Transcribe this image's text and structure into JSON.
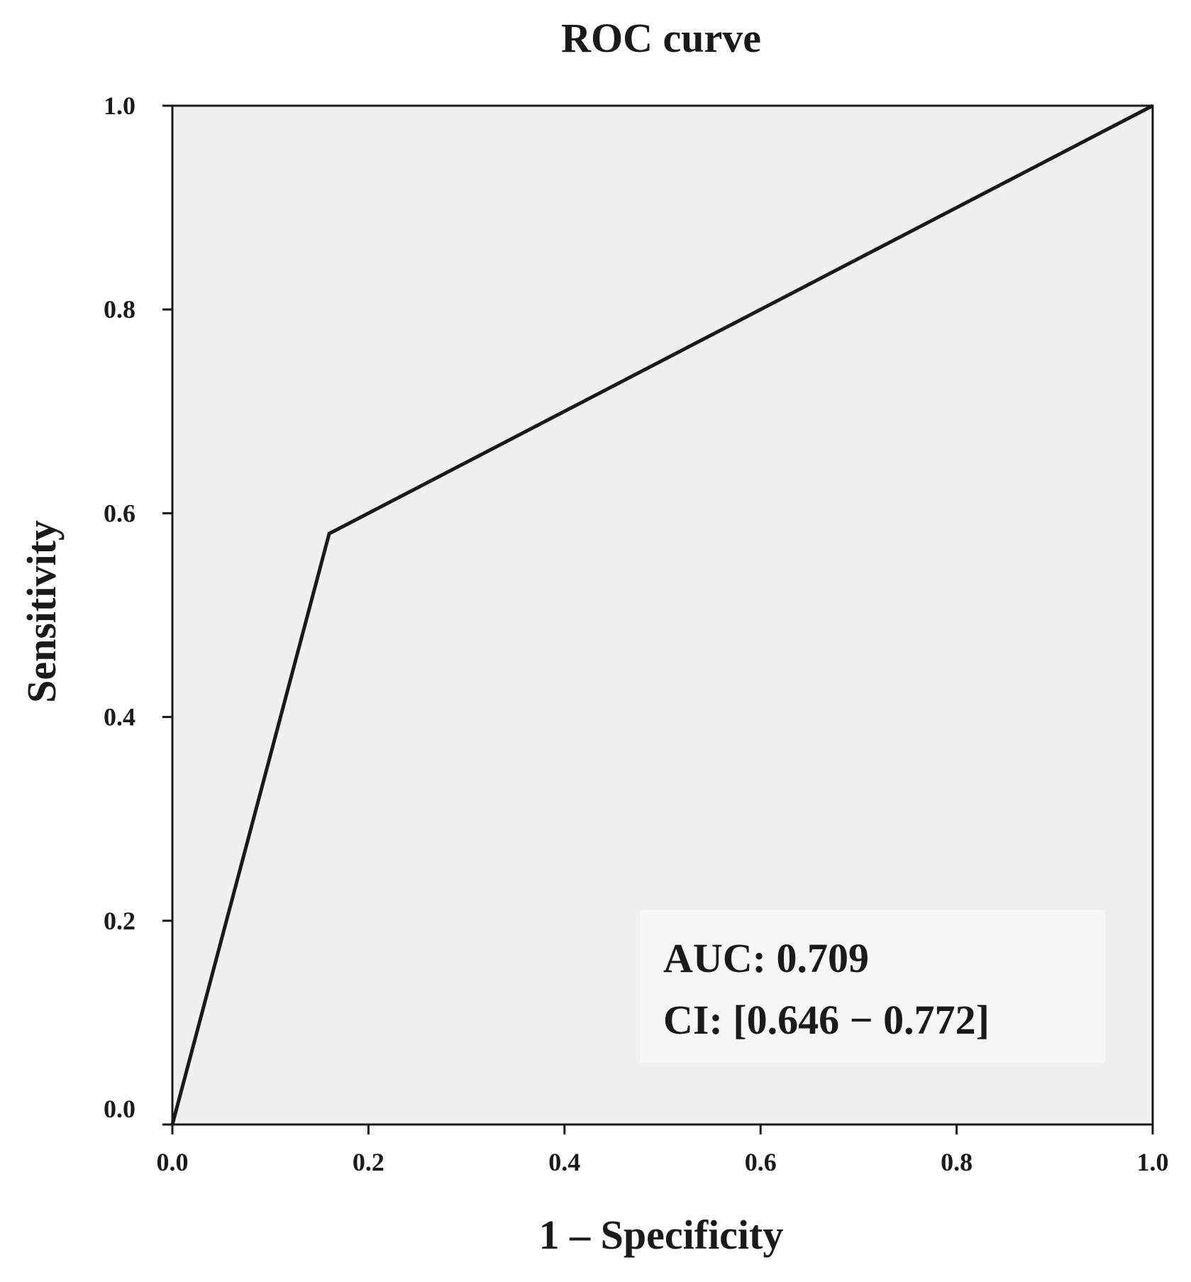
{
  "chart_data": {
    "type": "line",
    "title": "ROC curve",
    "xlabel": "1 – Specificity",
    "ylabel": "Sensitivity",
    "xlim": [
      0.0,
      1.0
    ],
    "ylim": [
      0.0,
      1.0
    ],
    "xticks": [
      "0.0",
      "0.2",
      "0.4",
      "0.6",
      "0.8",
      "1.0"
    ],
    "yticks": [
      "0.0",
      "0.2",
      "0.4",
      "0.6",
      "0.8",
      "1.0"
    ],
    "grid": false,
    "series": [
      {
        "x": [
          0.0,
          0.16,
          1.0
        ],
        "y": [
          0.0,
          0.58,
          1.0
        ]
      }
    ],
    "annotations": [
      "AUC: 0.709",
      "CI: [0.646 − 0.772]"
    ],
    "colors": {
      "plot_background": "#f0f0f0",
      "line": "#1a1a1a",
      "axis": "#1a1a1a",
      "annotation_box": "#f7f7f7"
    }
  }
}
